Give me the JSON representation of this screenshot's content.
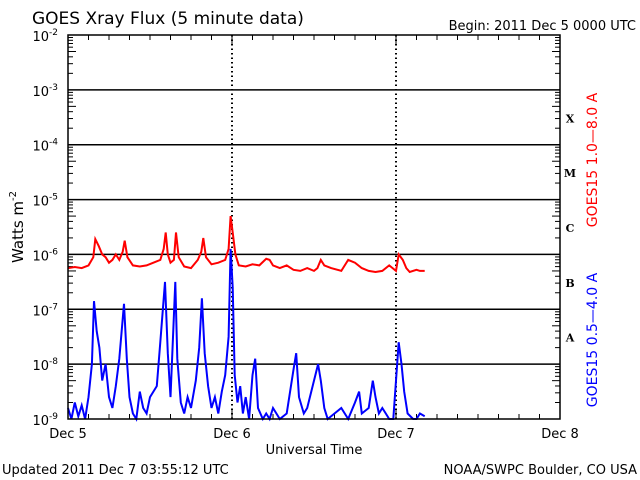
{
  "chart_data": {
    "type": "line",
    "title": "GOES Xray Flux (5 minute data)",
    "begin_label": "Begin:  2011 Dec 5 0000 UTC",
    "xlabel": "Universal Time",
    "ylabel": "Watts m",
    "ylabel_sup": "-2",
    "x_unit": "hours since 2011 Dec 5 0000 UTC",
    "xlim": [
      0,
      72
    ],
    "ylim_log10": [
      -9,
      -2
    ],
    "x_ticks": [
      {
        "h": 0,
        "label": "Dec 5"
      },
      {
        "h": 24,
        "label": "Dec 6"
      },
      {
        "h": 48,
        "label": "Dec 7"
      },
      {
        "h": 72,
        "label": "Dec 8"
      }
    ],
    "y_ticks": [
      {
        "exp": -2,
        "label": "-2"
      },
      {
        "exp": -3,
        "label": "-3"
      },
      {
        "exp": -4,
        "label": "-4"
      },
      {
        "exp": -5,
        "label": "-5"
      },
      {
        "exp": -6,
        "label": "-6"
      },
      {
        "exp": -7,
        "label": "-7"
      },
      {
        "exp": -8,
        "label": "-8"
      },
      {
        "exp": -9,
        "label": "-9"
      }
    ],
    "y_tick_base": "10",
    "flare_classes": [
      {
        "label": "X",
        "exp": -3.5
      },
      {
        "label": "M",
        "exp": -4.5
      },
      {
        "label": "C",
        "exp": -5.5
      },
      {
        "label": "B",
        "exp": -6.5
      },
      {
        "label": "A",
        "exp": -7.5
      }
    ],
    "grid": "horizontal lines at each decade",
    "series": [
      {
        "name": "GOES15 1.0—8.0 A",
        "color": "#ff0000",
        "points": [
          [
            0,
            -6.25
          ],
          [
            1,
            -6.23
          ],
          [
            2,
            -6.25
          ],
          [
            3,
            -6.2
          ],
          [
            3.7,
            -6.05
          ],
          [
            4,
            -5.72
          ],
          [
            4.5,
            -5.85
          ],
          [
            5,
            -6.0
          ],
          [
            5.5,
            -6.05
          ],
          [
            6,
            -6.15
          ],
          [
            6.5,
            -6.1
          ],
          [
            7,
            -6.0
          ],
          [
            7.5,
            -6.1
          ],
          [
            8,
            -5.95
          ],
          [
            8.3,
            -5.75
          ],
          [
            8.7,
            -6.05
          ],
          [
            9.5,
            -6.2
          ],
          [
            10.5,
            -6.22
          ],
          [
            11.5,
            -6.2
          ],
          [
            12.5,
            -6.15
          ],
          [
            13.5,
            -6.1
          ],
          [
            14,
            -5.9
          ],
          [
            14.3,
            -5.6
          ],
          [
            14.6,
            -6.0
          ],
          [
            15,
            -6.15
          ],
          [
            15.5,
            -6.1
          ],
          [
            15.8,
            -5.6
          ],
          [
            16.2,
            -6.05
          ],
          [
            17,
            -6.22
          ],
          [
            18,
            -6.25
          ],
          [
            19,
            -6.1
          ],
          [
            19.5,
            -5.95
          ],
          [
            19.8,
            -5.7
          ],
          [
            20.2,
            -6.05
          ],
          [
            21,
            -6.18
          ],
          [
            22,
            -6.15
          ],
          [
            23,
            -6.1
          ],
          [
            23.5,
            -5.9
          ],
          [
            23.8,
            -5.3
          ],
          [
            24.1,
            -5.6
          ],
          [
            24.5,
            -6.0
          ],
          [
            25,
            -6.2
          ],
          [
            26,
            -6.22
          ],
          [
            27,
            -6.18
          ],
          [
            28,
            -6.2
          ],
          [
            29,
            -6.08
          ],
          [
            29.5,
            -6.1
          ],
          [
            30,
            -6.2
          ],
          [
            31,
            -6.25
          ],
          [
            32,
            -6.2
          ],
          [
            33,
            -6.28
          ],
          [
            34,
            -6.3
          ],
          [
            35,
            -6.25
          ],
          [
            36,
            -6.3
          ],
          [
            36.5,
            -6.25
          ],
          [
            37,
            -6.1
          ],
          [
            37.5,
            -6.2
          ],
          [
            38.5,
            -6.25
          ],
          [
            40,
            -6.3
          ],
          [
            41,
            -6.1
          ],
          [
            42,
            -6.15
          ],
          [
            43,
            -6.25
          ],
          [
            44,
            -6.3
          ],
          [
            45,
            -6.32
          ],
          [
            46,
            -6.3
          ],
          [
            47,
            -6.2
          ],
          [
            47.5,
            -6.25
          ],
          [
            48,
            -6.3
          ],
          [
            48.4,
            -6.0
          ],
          [
            49,
            -6.1
          ],
          [
            49.5,
            -6.25
          ],
          [
            50,
            -6.32
          ],
          [
            51,
            -6.28
          ],
          [
            51.5,
            -6.3
          ],
          [
            52.2,
            -6.3
          ]
        ]
      },
      {
        "name": "GOES15 0.5—4.0 A",
        "color": "#0000ff",
        "points": [
          [
            0,
            -8.8
          ],
          [
            0.5,
            -9
          ],
          [
            1,
            -8.7
          ],
          [
            1.5,
            -8.95
          ],
          [
            2,
            -8.75
          ],
          [
            2.5,
            -9
          ],
          [
            3,
            -8.6
          ],
          [
            3.5,
            -8.0
          ],
          [
            3.8,
            -6.85
          ],
          [
            4.2,
            -7.4
          ],
          [
            4.6,
            -7.7
          ],
          [
            5,
            -8.3
          ],
          [
            5.5,
            -8.0
          ],
          [
            6,
            -8.6
          ],
          [
            6.5,
            -8.8
          ],
          [
            7,
            -8.4
          ],
          [
            7.5,
            -7.9
          ],
          [
            8.2,
            -6.9
          ],
          [
            8.6,
            -7.9
          ],
          [
            9,
            -8.6
          ],
          [
            9.5,
            -8.9
          ],
          [
            10,
            -9
          ],
          [
            10.5,
            -8.5
          ],
          [
            11,
            -8.8
          ],
          [
            11.5,
            -8.9
          ],
          [
            12,
            -8.6
          ],
          [
            13,
            -8.4
          ],
          [
            13.5,
            -7.6
          ],
          [
            14.2,
            -6.5
          ],
          [
            14.6,
            -7.8
          ],
          [
            15,
            -8.6
          ],
          [
            15.7,
            -6.5
          ],
          [
            16,
            -7.9
          ],
          [
            16.5,
            -8.7
          ],
          [
            17,
            -8.9
          ],
          [
            17.5,
            -8.6
          ],
          [
            18,
            -8.8
          ],
          [
            18.7,
            -8.3
          ],
          [
            19.2,
            -7.7
          ],
          [
            19.6,
            -6.8
          ],
          [
            20,
            -7.8
          ],
          [
            20.5,
            -8.4
          ],
          [
            21,
            -8.8
          ],
          [
            21.5,
            -8.6
          ],
          [
            22,
            -8.9
          ],
          [
            22.5,
            -8.5
          ],
          [
            23,
            -8.2
          ],
          [
            23.5,
            -7.5
          ],
          [
            23.8,
            -5.9
          ],
          [
            24.1,
            -6.6
          ],
          [
            24.4,
            -8.2
          ],
          [
            24.8,
            -8.7
          ],
          [
            25.2,
            -8.4
          ],
          [
            25.6,
            -8.9
          ],
          [
            26,
            -8.6
          ],
          [
            26.5,
            -9
          ],
          [
            27,
            -8.2
          ],
          [
            27.4,
            -7.9
          ],
          [
            27.8,
            -8.8
          ],
          [
            28.5,
            -9
          ],
          [
            29,
            -8.9
          ],
          [
            29.5,
            -9
          ],
          [
            30,
            -8.8
          ],
          [
            31,
            -9
          ],
          [
            32,
            -8.9
          ],
          [
            33,
            -8.1
          ],
          [
            33.4,
            -7.8
          ],
          [
            33.8,
            -8.6
          ],
          [
            34.5,
            -8.9
          ],
          [
            35,
            -8.8
          ],
          [
            36,
            -8.3
          ],
          [
            36.6,
            -8.0
          ],
          [
            37,
            -8.3
          ],
          [
            37.5,
            -8.8
          ],
          [
            38,
            -9
          ],
          [
            39,
            -8.9
          ],
          [
            40,
            -8.8
          ],
          [
            41,
            -9
          ],
          [
            42,
            -8.7
          ],
          [
            42.6,
            -8.5
          ],
          [
            43,
            -8.9
          ],
          [
            44,
            -8.8
          ],
          [
            44.6,
            -8.3
          ],
          [
            45,
            -8.6
          ],
          [
            45.5,
            -8.9
          ],
          [
            46,
            -8.8
          ],
          [
            46.5,
            -8.9
          ],
          [
            47,
            -9
          ],
          [
            47.6,
            -9
          ],
          [
            48,
            -8.3
          ],
          [
            48.4,
            -7.6
          ],
          [
            48.8,
            -8.0
          ],
          [
            49.2,
            -8.5
          ],
          [
            49.7,
            -8.9
          ],
          [
            50.5,
            -9
          ],
          [
            51,
            -9
          ],
          [
            51.5,
            -8.9
          ],
          [
            52.2,
            -8.95
          ]
        ]
      }
    ]
  },
  "footer": {
    "updated": "Updated 2011 Dec  7 03:55:12 UTC",
    "credit": "NOAA/SWPC Boulder, CO USA"
  }
}
